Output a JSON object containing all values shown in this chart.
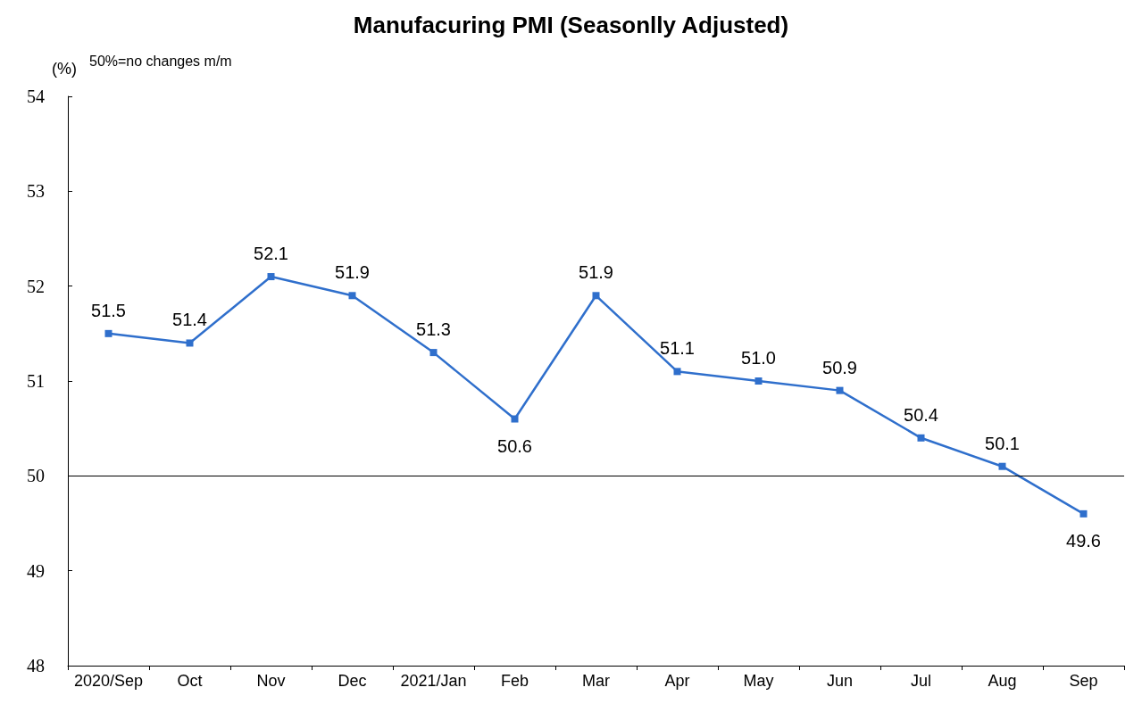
{
  "chart_data": {
    "type": "line",
    "title": "Manufacuring PMI (Seasonlly Adjusted)",
    "ylabel": "(%)",
    "annotations": [
      "50%=no changes m/m"
    ],
    "categories": [
      "2020/Sep",
      "Oct",
      "Nov",
      "Dec",
      "2021/Jan",
      "Feb",
      "Mar",
      "Apr",
      "May",
      "Jun",
      "Jul",
      "Aug",
      "Sep"
    ],
    "series": [
      {
        "color": "#2f6fcc",
        "values": [
          51.5,
          51.4,
          52.1,
          51.9,
          51.3,
          50.6,
          51.9,
          51.1,
          51.0,
          50.9,
          50.4,
          50.1,
          49.6
        ],
        "value_labels": [
          "51.5",
          "51.4",
          "52.1",
          "51.9",
          "51.3",
          "50.6",
          "51.9",
          "51.1",
          "51.0",
          "50.9",
          "50.4",
          "50.1",
          "49.6"
        ]
      }
    ],
    "ylim": [
      48,
      54
    ],
    "yticks": [
      48,
      49,
      50,
      51,
      52,
      53,
      54
    ],
    "ref_lines": [
      {
        "axis": "y",
        "value": 50,
        "color": "#000000"
      }
    ],
    "grid": false,
    "marker": "square",
    "line_style": "solid"
  }
}
